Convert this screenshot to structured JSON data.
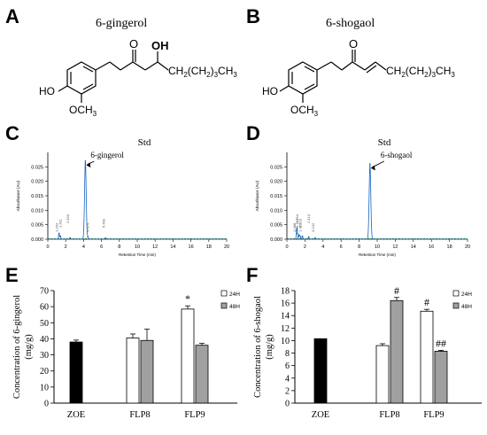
{
  "panels": {
    "A": {
      "letter": "A",
      "compound": "6-gingerol",
      "labels": {
        "o": "O",
        "oh": "OH",
        "chain": "CH(CH)CH",
        "chain_sub1": "2",
        "chain_sub2": "3",
        "chain_sub3": "3",
        "ho": "HO",
        "och3": "OCH",
        "och3_sub": "3"
      }
    },
    "B": {
      "letter": "B",
      "compound": "6-shogaol",
      "labels": {
        "o": "O",
        "chain": "CH(CH)CH",
        "chain_sub1": "2",
        "chain_sub2": "3",
        "chain_sub3": "3",
        "ho": "HO",
        "och3": "OCH",
        "och3_sub": "3"
      }
    },
    "C": {
      "letter": "C",
      "title": "Std",
      "peak_label": "6-gingerol",
      "ylabel": "Absorbance (AU)",
      "xlabel": "Retention Time (min)",
      "yticks": [
        "0.025",
        "0.020",
        "0.015",
        "0.010",
        "0.005",
        "0.000"
      ],
      "xticks": [
        "0",
        "2",
        "4",
        "6",
        "8",
        "10",
        "12",
        "14",
        "16",
        "18",
        "20"
      ],
      "small_peak_labels": [
        "1.253",
        "1.411",
        "2.493",
        "4.474",
        "6.463"
      ]
    },
    "D": {
      "letter": "D",
      "title": "Std",
      "peak_label": "6-shogaol",
      "ylabel": "Absorbance (AU)",
      "xlabel": "Retention Time (min)",
      "yticks": [
        "0.025",
        "0.020",
        "0.015",
        "0.010",
        "0.005",
        "0.000"
      ],
      "xticks": [
        "0",
        "2",
        "4",
        "6",
        "8",
        "10",
        "12",
        "14",
        "16",
        "18",
        "20"
      ],
      "small_peak_labels": [
        "1.088",
        "1.152",
        "1.354",
        "1.479",
        "1.719",
        "2.413",
        "3.132"
      ]
    },
    "E": {
      "letter": "E"
    },
    "F": {
      "letter": "F"
    }
  },
  "chart_data": [
    {
      "type": "line",
      "panel": "C",
      "title": "Std",
      "xlabel": "Retention Time (min)",
      "ylabel": "Absorbance (AU)",
      "xlim": [
        0,
        20
      ],
      "ylim": [
        0,
        0.03
      ],
      "annotation": "6-gingerol",
      "peaks": [
        {
          "x": 1.253,
          "y": 0.002
        },
        {
          "x": 1.411,
          "y": 0.001
        },
        {
          "x": 2.493,
          "y": 0.0005
        },
        {
          "x": 4.2,
          "y": 0.027
        },
        {
          "x": 4.474,
          "y": 0.0008
        },
        {
          "x": 6.463,
          "y": 0.0004
        }
      ]
    },
    {
      "type": "line",
      "panel": "D",
      "title": "Std",
      "xlabel": "Retention Time (min)",
      "ylabel": "Absorbance (AU)",
      "xlim": [
        0,
        20
      ],
      "ylim": [
        0,
        0.03
      ],
      "annotation": "6-shogaol",
      "peaks": [
        {
          "x": 1.088,
          "y": 0.003
        },
        {
          "x": 1.152,
          "y": 0.002
        },
        {
          "x": 1.354,
          "y": 0.0015
        },
        {
          "x": 1.479,
          "y": 0.001
        },
        {
          "x": 1.719,
          "y": 0.001
        },
        {
          "x": 2.413,
          "y": 0.0008
        },
        {
          "x": 3.132,
          "y": 0.0005
        },
        {
          "x": 9.2,
          "y": 0.026
        }
      ]
    },
    {
      "type": "bar",
      "panel": "E",
      "ylabel": "Concentration of 6-gingerol (mg/g)",
      "ylim": [
        0,
        70
      ],
      "yticks": [
        0,
        10,
        20,
        30,
        40,
        50,
        60,
        70
      ],
      "categories": [
        "ZOE",
        "FLP8",
        "FLP9"
      ],
      "legend": [
        "24H",
        "48H"
      ],
      "legend_position": "top-right",
      "series": [
        {
          "name": "ZOE",
          "color": "#000000",
          "values": [
            38,
            null,
            null
          ],
          "errors": [
            1.2,
            null,
            null
          ]
        },
        {
          "name": "24H",
          "color": "#ffffff",
          "values": [
            null,
            40.5,
            58.5
          ],
          "errors": [
            null,
            2.5,
            2
          ],
          "annotations": [
            null,
            "",
            "*"
          ]
        },
        {
          "name": "48H",
          "color": "#a0a0a0",
          "values": [
            null,
            39,
            36
          ],
          "errors": [
            null,
            7,
            1.2
          ],
          "annotations": [
            null,
            "",
            ""
          ]
        }
      ]
    },
    {
      "type": "bar",
      "panel": "F",
      "ylabel": "Concentration of 6-shogaol (mg/g)",
      "ylim": [
        0,
        18
      ],
      "yticks": [
        0,
        2,
        4,
        6,
        8,
        10,
        12,
        14,
        16,
        18
      ],
      "categories": [
        "ZOE",
        "FLP8",
        "FLP9"
      ],
      "legend": [
        "24H",
        "48H"
      ],
      "legend_position": "top-right",
      "series": [
        {
          "name": "ZOE",
          "color": "#000000",
          "values": [
            10.3,
            null,
            null
          ],
          "errors": [
            0,
            null,
            null
          ]
        },
        {
          "name": "24H",
          "color": "#ffffff",
          "values": [
            null,
            9.2,
            14.7
          ],
          "errors": [
            null,
            0.3,
            0.3
          ],
          "annotations": [
            null,
            "",
            "#"
          ]
        },
        {
          "name": "48H",
          "color": "#a0a0a0",
          "values": [
            null,
            16.4,
            8.3
          ],
          "errors": [
            null,
            0.5,
            0.15
          ],
          "annotations": [
            null,
            "#",
            "##"
          ]
        }
      ]
    }
  ]
}
